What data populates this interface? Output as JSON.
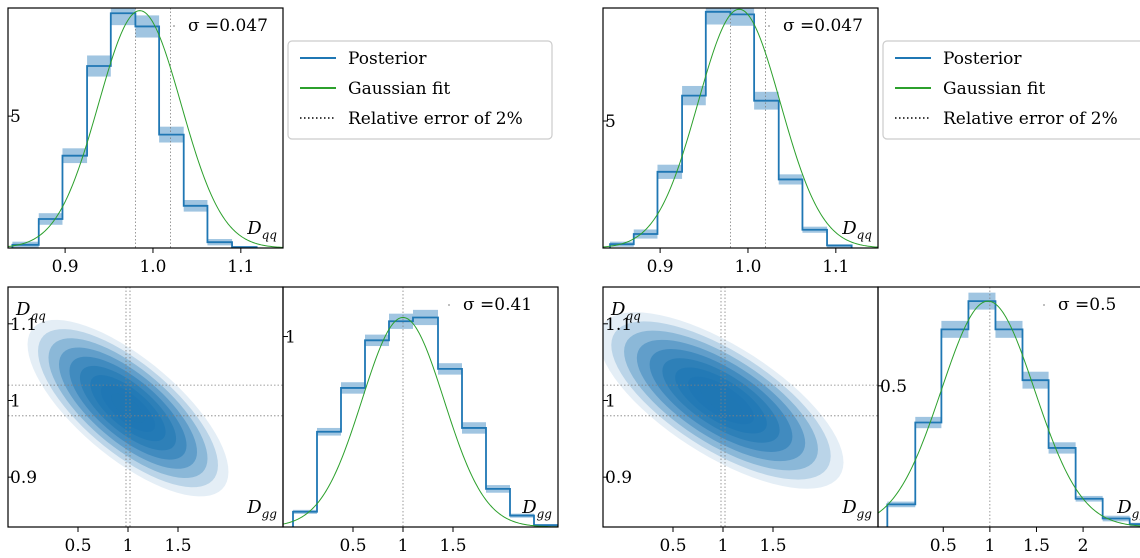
{
  "colors": {
    "posterior": "#1f77b4",
    "band": "#8fbbdc",
    "gaussian": "#2ca02c",
    "guide": "#808080"
  },
  "legend": {
    "entries": [
      "Posterior",
      "Gaussian fit",
      "Relative error of 2%"
    ],
    "styles": [
      "posterior",
      "gaussian",
      "dotted"
    ]
  },
  "chart_data": [
    {
      "type": "histogram",
      "panel": "left-1d-Dqq",
      "sigma_label": "σ =0.047",
      "axis_symbol": "D",
      "axis_subscript": "qq",
      "xlim": [
        0.835,
        1.148
      ],
      "ylim": [
        0,
        9.1
      ],
      "ytick_values": [
        5
      ],
      "ytick_labels": [
        "5"
      ],
      "xtick_values": [
        0.9,
        1.0,
        1.1
      ],
      "xtick_labels": [
        "0.9",
        "1.0",
        "1.1"
      ],
      "guides_x": [
        0.98,
        1.02
      ],
      "bin_edges": [
        0.84,
        0.87,
        0.897,
        0.925,
        0.952,
        0.98,
        1.007,
        1.035,
        1.062,
        1.09,
        1.118
      ],
      "values": [
        0.12,
        1.1,
        3.5,
        6.9,
        8.9,
        8.4,
        4.3,
        1.6,
        0.22,
        0.03
      ],
      "band_halfwidth": [
        0.12,
        0.22,
        0.28,
        0.4,
        0.45,
        0.42,
        0.3,
        0.22,
        0.12,
        0.04
      ],
      "gaussian": {
        "mean": 0.985,
        "sigma": 0.047,
        "peak": 9.0
      }
    },
    {
      "type": "histogram",
      "panel": "right-1d-Dqq",
      "sigma_label": "σ =0.047",
      "axis_symbol": "D",
      "axis_subscript": "qq",
      "xlim": [
        0.835,
        1.148
      ],
      "ylim": [
        0,
        9.45
      ],
      "ytick_values": [
        5
      ],
      "ytick_labels": [
        "5"
      ],
      "xtick_values": [
        0.9,
        1.0,
        1.1
      ],
      "xtick_labels": [
        "0.9",
        "1.0",
        "1.1"
      ],
      "guides_x": [
        0.98,
        1.02
      ],
      "bin_edges": [
        0.843,
        0.87,
        0.897,
        0.925,
        0.952,
        0.98,
        1.007,
        1.035,
        1.062,
        1.09,
        1.118
      ],
      "values": [
        0.15,
        0.55,
        3.0,
        6.0,
        9.3,
        9.2,
        5.8,
        2.7,
        0.72,
        0.1
      ],
      "band_halfwidth": [
        0.1,
        0.18,
        0.28,
        0.38,
        0.5,
        0.45,
        0.35,
        0.2,
        0.12,
        0.04
      ],
      "gaussian": {
        "mean": 0.99,
        "sigma": 0.047,
        "peak": 9.4
      }
    },
    {
      "type": "histogram",
      "panel": "left-1d-Dgg",
      "sigma_label": "σ =0.41",
      "axis_symbol": "D",
      "axis_subscript": "gg",
      "xlim": [
        -0.2,
        2.55
      ],
      "ylim": [
        0,
        1.26
      ],
      "ytick_values": [
        1
      ],
      "ytick_labels": [
        "1"
      ],
      "xtick_values": [
        0.5,
        1,
        1.5
      ],
      "xtick_labels": [
        "0.5",
        "1",
        "1.5"
      ],
      "guides_x": [
        1
      ],
      "bin_edges": [
        -0.1,
        0.14,
        0.38,
        0.62,
        0.86,
        1.1,
        1.35,
        1.59,
        1.83,
        2.07,
        2.31,
        2.55
      ],
      "values": [
        0.08,
        0.5,
        0.73,
        0.98,
        1.08,
        1.1,
        0.83,
        0.52,
        0.2,
        0.06,
        0.01
      ],
      "band_halfwidth": [
        0.01,
        0.02,
        0.03,
        0.03,
        0.04,
        0.04,
        0.03,
        0.03,
        0.02,
        0.01,
        0.005
      ],
      "gaussian": {
        "mean": 1.0,
        "sigma": 0.41,
        "peak": 1.1
      }
    },
    {
      "type": "histogram",
      "panel": "right-1d-Dgg",
      "sigma_label": "σ =0.5",
      "axis_symbol": "D",
      "axis_subscript": "gg",
      "xlim": [
        -0.2,
        2.75
      ],
      "ylim": [
        0,
        0.85
      ],
      "ytick_values": [
        0.5
      ],
      "ytick_labels": [
        "0.5"
      ],
      "xtick_values": [
        0.5,
        1,
        1.5,
        2
      ],
      "xtick_labels": [
        "0.5",
        "1",
        "1.5",
        "2"
      ],
      "guides_x": [
        1
      ],
      "bin_edges": [
        -0.1,
        0.2,
        0.48,
        0.77,
        1.06,
        1.35,
        1.63,
        1.92,
        2.21,
        2.5,
        2.78
      ],
      "values": [
        0.08,
        0.37,
        0.7,
        0.8,
        0.7,
        0.52,
        0.28,
        0.1,
        0.03,
        0.01
      ],
      "band_halfwidth": [
        0.01,
        0.02,
        0.03,
        0.03,
        0.03,
        0.03,
        0.02,
        0.01,
        0.01,
        0.005
      ],
      "gaussian": {
        "mean": 0.98,
        "sigma": 0.5,
        "peak": 0.8
      }
    },
    {
      "type": "contour",
      "panel": "left-2d-Dgg-Dqq",
      "x_symbol": "D",
      "x_subscript": "gg",
      "y_symbol": "D",
      "y_subscript": "qq",
      "xlim": [
        -0.2,
        2.55
      ],
      "ylim": [
        0.835,
        1.148
      ],
      "xtick_values": [
        0.5,
        1,
        1.5
      ],
      "xtick_labels": [
        "0.5",
        "1",
        "1.5"
      ],
      "ytick_values": [
        0.9,
        1,
        1.1
      ],
      "ytick_labels": [
        "0.9",
        "1",
        "1.1"
      ],
      "guides_x": [
        0.98,
        1.02
      ],
      "guides_y": [
        0.98,
        1.02
      ],
      "center": [
        1.0,
        0.99
      ],
      "sigma_x": 0.41,
      "sigma_y": 0.047,
      "rho": -0.72,
      "levels": 9
    },
    {
      "type": "contour",
      "panel": "right-2d-Dgg-Dqq",
      "x_symbol": "D",
      "x_subscript": "gg",
      "y_symbol": "D",
      "y_subscript": "qq",
      "xlim": [
        -0.2,
        2.55
      ],
      "ylim": [
        0.835,
        1.148
      ],
      "xtick_values": [
        0.5,
        1,
        1.5
      ],
      "xtick_labels": [
        "0.5",
        "1",
        "1.5"
      ],
      "ytick_values": [
        0.9,
        1,
        1.1
      ],
      "ytick_labels": [
        "0.9",
        "1",
        "1.1"
      ],
      "guides_x": [
        0.98,
        1.02
      ],
      "guides_y": [
        0.98,
        1.02
      ],
      "center": [
        0.98,
        1.0
      ],
      "sigma_x": 0.5,
      "sigma_y": 0.047,
      "rho": -0.7,
      "levels": 9
    }
  ]
}
